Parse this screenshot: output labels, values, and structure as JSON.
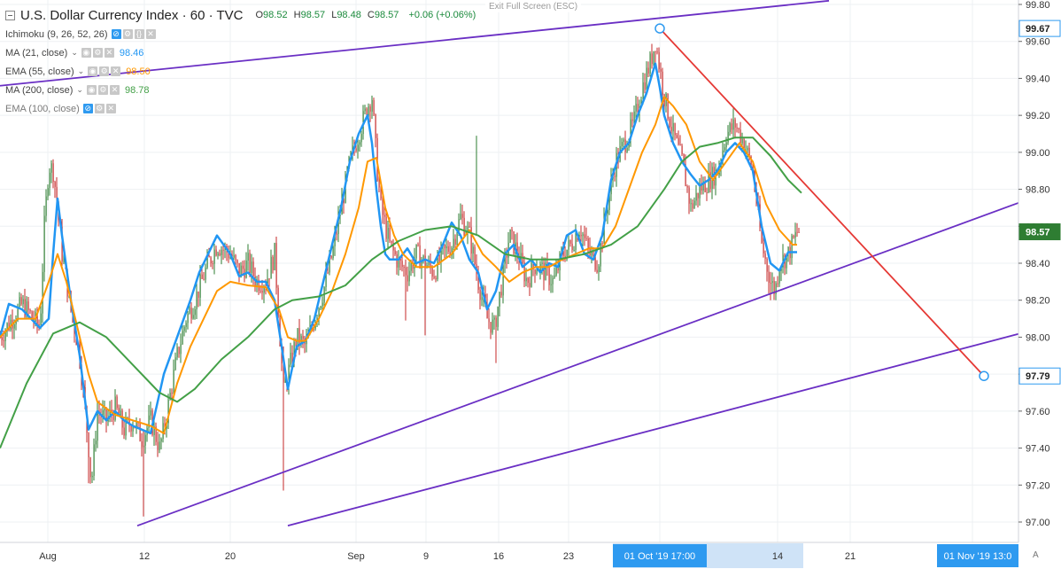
{
  "header": {
    "symbol": "U.S. Dollar Currency Index · 60 · TVC",
    "ohlc": {
      "o_label": "O",
      "o": "98.52",
      "h_label": "H",
      "h": "98.57",
      "l_label": "L",
      "l": "98.48",
      "c_label": "C",
      "c": "98.57",
      "change": "+0.06 (+0.06%)"
    },
    "exit_fullscreen": "Exit Full Screen (ESC)"
  },
  "indicators": [
    {
      "name": "Ichimoku (9, 26, 52, 26)",
      "value": "",
      "color": "#444444"
    },
    {
      "name": "MA (21, close)",
      "value": "98.46",
      "color": "#2196f3"
    },
    {
      "name": "EMA (55, close)",
      "value": "98.50",
      "color": "#ff9800"
    },
    {
      "name": "MA (200, close)",
      "value": "98.78",
      "color": "#43a047"
    },
    {
      "name": "EMA (100, close)",
      "value": "",
      "color": "#7a7a7a"
    }
  ],
  "chart_data": {
    "type": "line",
    "title": "U.S. Dollar Currency Index · 60 · TVC",
    "y_axis_side": "right",
    "ylim": [
      96.9,
      99.82
    ],
    "y_ticks": [
      "97.00",
      "97.20",
      "97.40",
      "97.60",
      "97.80",
      "98.00",
      "98.20",
      "98.40",
      "98.60",
      "98.80",
      "99.00",
      "99.20",
      "99.40",
      "99.60",
      "99.80"
    ],
    "x_ticks": [
      "Aug",
      "12",
      "20",
      "Sep",
      "9",
      "16",
      "23",
      "01 Oct '19",
      "14",
      "21",
      "01 Nov '19"
    ],
    "crosshair_labels": {
      "date": "01 Oct '19",
      "time": "17:00",
      "date2": "01 Nov '19",
      "time2": "13:0"
    },
    "price_labels": [
      {
        "value": "99.67",
        "bg": "#ffffff"
      },
      {
        "value": "98.57",
        "bg": "#2e7d32"
      },
      {
        "value": "97.79",
        "bg": "#ffffff"
      }
    ],
    "colors": {
      "up": "#2e7d32",
      "down": "#c62828",
      "ma21": "#2196f3",
      "ema55": "#ff9800",
      "ma200": "#43a047",
      "channel": "#6a2fc4",
      "downtrend": "#e53935"
    },
    "series": [
      {
        "name": "MA (21, close)",
        "x": [
          0,
          10,
          25,
          45,
          55,
          60,
          65,
          70,
          80,
          90,
          100,
          110,
          120,
          130,
          140,
          150,
          160,
          170,
          185,
          200,
          215,
          225,
          235,
          245,
          260,
          270,
          280,
          290,
          300,
          310,
          318,
          325,
          335,
          345,
          355,
          365,
          375,
          385,
          395,
          405,
          415,
          420,
          425,
          430,
          435,
          440,
          450,
          460,
          470,
          480,
          490,
          500,
          510,
          520,
          530,
          540,
          550,
          560,
          570,
          580,
          590,
          600,
          610,
          620,
          630,
          640,
          650,
          660,
          670,
          680,
          690,
          700,
          710,
          720,
          730,
          740,
          745,
          750,
          760,
          770,
          780,
          790,
          800,
          810,
          820,
          830,
          840,
          850,
          860,
          870,
          880,
          890,
          900
        ],
        "values": [
          98.0,
          98.18,
          98.15,
          98.05,
          98.1,
          98.45,
          98.75,
          98.55,
          98.2,
          97.9,
          97.5,
          97.6,
          97.55,
          97.6,
          97.55,
          97.52,
          97.5,
          97.48,
          97.8,
          98.0,
          98.2,
          98.35,
          98.45,
          98.55,
          98.45,
          98.33,
          98.35,
          98.3,
          98.3,
          98.2,
          97.95,
          97.72,
          97.95,
          97.98,
          98.1,
          98.3,
          98.5,
          98.7,
          98.95,
          99.1,
          99.2,
          99.05,
          98.8,
          98.6,
          98.45,
          98.42,
          98.42,
          98.48,
          98.4,
          98.42,
          98.4,
          98.5,
          98.62,
          98.55,
          98.42,
          98.35,
          98.15,
          98.25,
          98.45,
          98.5,
          98.38,
          98.42,
          98.35,
          98.4,
          98.38,
          98.55,
          98.58,
          98.45,
          98.42,
          98.55,
          98.85,
          99.0,
          99.05,
          99.2,
          99.32,
          99.48,
          99.35,
          99.2,
          99.05,
          98.95,
          98.88,
          98.82,
          98.85,
          98.9,
          99.0,
          99.05,
          99.0,
          98.9,
          98.6,
          98.4,
          98.36,
          98.46,
          98.46
        ]
      },
      {
        "name": "EMA (55, close)",
        "x": [
          0,
          20,
          40,
          55,
          65,
          75,
          90,
          100,
          110,
          130,
          150,
          170,
          185,
          200,
          215,
          230,
          245,
          260,
          280,
          300,
          315,
          325,
          335,
          345,
          360,
          375,
          390,
          405,
          415,
          425,
          435,
          445,
          455,
          470,
          490,
          510,
          530,
          545,
          560,
          575,
          590,
          605,
          620,
          635,
          650,
          665,
          680,
          695,
          710,
          725,
          740,
          750,
          760,
          775,
          790,
          805,
          820,
          835,
          850,
          865,
          880,
          895,
          900
        ],
        "values": [
          98.0,
          98.1,
          98.1,
          98.3,
          98.45,
          98.3,
          98.0,
          97.8,
          97.65,
          97.58,
          97.55,
          97.52,
          97.48,
          97.75,
          97.95,
          98.1,
          98.25,
          98.3,
          98.28,
          98.27,
          98.15,
          98.0,
          97.98,
          97.98,
          98.1,
          98.25,
          98.45,
          98.7,
          98.95,
          98.97,
          98.7,
          98.55,
          98.45,
          98.38,
          98.38,
          98.45,
          98.58,
          98.45,
          98.38,
          98.3,
          98.35,
          98.38,
          98.38,
          98.42,
          98.45,
          98.48,
          98.48,
          98.6,
          98.8,
          99.0,
          99.15,
          99.3,
          99.25,
          99.15,
          98.95,
          98.85,
          98.95,
          99.05,
          98.95,
          98.72,
          98.58,
          98.5,
          98.5
        ]
      },
      {
        "name": "MA (200, close)",
        "x": [
          0,
          30,
          60,
          90,
          120,
          150,
          180,
          200,
          220,
          250,
          280,
          310,
          330,
          360,
          390,
          420,
          450,
          480,
          510,
          540,
          570,
          600,
          630,
          660,
          690,
          720,
          750,
          770,
          790,
          810,
          830,
          850,
          870,
          890,
          905
        ],
        "values": [
          97.4,
          97.75,
          98.02,
          98.08,
          98.0,
          97.85,
          97.7,
          97.65,
          97.72,
          97.88,
          98.0,
          98.15,
          98.2,
          98.22,
          98.28,
          98.42,
          98.52,
          98.58,
          98.6,
          98.55,
          98.45,
          98.42,
          98.42,
          98.45,
          98.5,
          98.6,
          98.8,
          98.95,
          99.03,
          99.05,
          99.08,
          99.08,
          98.98,
          98.85,
          98.78
        ]
      }
    ],
    "candle_walk": [
      [
        0,
        98.0
      ],
      [
        25,
        98.18
      ],
      [
        45,
        98.05
      ],
      [
        50,
        98.6
      ],
      [
        55,
        98.93
      ],
      [
        60,
        98.9
      ],
      [
        65,
        98.7
      ],
      [
        70,
        98.45
      ],
      [
        80,
        98.15
      ],
      [
        90,
        97.9
      ],
      [
        100,
        97.4
      ],
      [
        103,
        97.2
      ],
      [
        110,
        97.6
      ],
      [
        120,
        97.55
      ],
      [
        130,
        97.62
      ],
      [
        140,
        97.5
      ],
      [
        150,
        97.55
      ],
      [
        160,
        97.45
      ],
      [
        170,
        97.55
      ],
      [
        180,
        97.4
      ],
      [
        185,
        97.5
      ],
      [
        200,
        97.9
      ],
      [
        210,
        98.1
      ],
      [
        220,
        98.2
      ],
      [
        235,
        98.4
      ],
      [
        245,
        98.5
      ],
      [
        260,
        98.45
      ],
      [
        270,
        98.35
      ],
      [
        280,
        98.4
      ],
      [
        290,
        98.3
      ],
      [
        300,
        98.3
      ],
      [
        310,
        98.45
      ],
      [
        320,
        97.7
      ],
      [
        325,
        97.8
      ],
      [
        335,
        98.0
      ],
      [
        345,
        97.95
      ],
      [
        355,
        98.1
      ],
      [
        365,
        98.25
      ],
      [
        375,
        98.45
      ],
      [
        385,
        98.7
      ],
      [
        395,
        98.95
      ],
      [
        405,
        99.1
      ],
      [
        415,
        99.25
      ],
      [
        420,
        99.3
      ],
      [
        425,
        98.95
      ],
      [
        430,
        98.7
      ],
      [
        440,
        98.5
      ],
      [
        450,
        98.4
      ],
      [
        460,
        98.35
      ],
      [
        470,
        98.45
      ],
      [
        480,
        98.4
      ],
      [
        490,
        98.35
      ],
      [
        500,
        98.45
      ],
      [
        510,
        98.5
      ],
      [
        520,
        98.65
      ],
      [
        530,
        98.55
      ],
      [
        540,
        98.3
      ],
      [
        550,
        98.1
      ],
      [
        558,
        98.05
      ],
      [
        565,
        98.25
      ],
      [
        575,
        98.55
      ],
      [
        585,
        98.45
      ],
      [
        595,
        98.3
      ],
      [
        605,
        98.4
      ],
      [
        615,
        98.35
      ],
      [
        625,
        98.3
      ],
      [
        635,
        98.45
      ],
      [
        645,
        98.5
      ],
      [
        655,
        98.6
      ],
      [
        665,
        98.45
      ],
      [
        675,
        98.4
      ],
      [
        685,
        98.7
      ],
      [
        695,
        98.95
      ],
      [
        705,
        99.05
      ],
      [
        715,
        99.15
      ],
      [
        725,
        99.35
      ],
      [
        735,
        99.5
      ],
      [
        740,
        99.6
      ],
      [
        745,
        99.45
      ],
      [
        750,
        99.3
      ],
      [
        760,
        99.1
      ],
      [
        770,
        98.95
      ],
      [
        780,
        98.7
      ],
      [
        790,
        98.8
      ],
      [
        800,
        98.85
      ],
      [
        810,
        98.9
      ],
      [
        820,
        99.1
      ],
      [
        830,
        99.15
      ],
      [
        840,
        99.05
      ],
      [
        850,
        98.9
      ],
      [
        860,
        98.5
      ],
      [
        870,
        98.3
      ],
      [
        875,
        98.25
      ],
      [
        880,
        98.4
      ],
      [
        890,
        98.45
      ],
      [
        900,
        98.57
      ]
    ],
    "annotations": [
      {
        "type": "trendline",
        "name": "upper-channel",
        "x1": 0,
        "y1": 99.36,
        "x2": 936,
        "y2": 99.82
      },
      {
        "type": "trendline",
        "name": "lower-channel-top",
        "x1": 155,
        "y1": 96.98,
        "x2": 1152,
        "y2": 98.73
      },
      {
        "type": "trendline",
        "name": "lower-channel-bottom",
        "x1": 325,
        "y1": 96.98,
        "x2": 1152,
        "y2": 98.02
      },
      {
        "type": "trendline",
        "name": "down-trend",
        "x1": 745,
        "y1": 99.67,
        "x2": 1111,
        "y2": 97.79
      }
    ]
  }
}
